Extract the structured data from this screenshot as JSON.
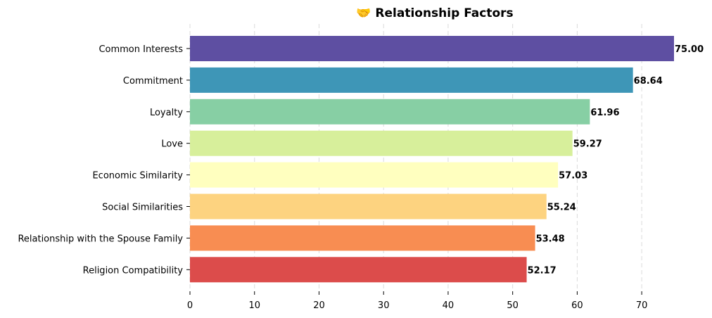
{
  "chart_data": {
    "type": "bar",
    "orientation": "horizontal",
    "title": "🤝 Relationship Factors",
    "categories": [
      "Common Interests",
      "Commitment",
      "Loyalty",
      "Love",
      "Economic Similarity",
      "Social Similarities",
      "Relationship with the Spouse Family",
      "Religion Compatibility"
    ],
    "values": [
      75.0,
      68.64,
      61.96,
      59.27,
      57.03,
      55.24,
      53.48,
      52.17
    ],
    "value_labels": [
      "75.00",
      "68.64",
      "61.96",
      "59.27",
      "57.03",
      "55.24",
      "53.48",
      "52.17"
    ],
    "colors": [
      "#5E4FA2",
      "#3E96B7",
      "#87CFA4",
      "#D7EF9B",
      "#FFFFBF",
      "#FDD380",
      "#F88D52",
      "#DC4C4B"
    ],
    "xlabel": "",
    "ylabel": "",
    "xlim": [
      0,
      75
    ],
    "xticks": [
      0,
      10,
      20,
      30,
      40,
      50,
      60,
      70
    ],
    "grid": "x-dashed",
    "legend": "none"
  }
}
